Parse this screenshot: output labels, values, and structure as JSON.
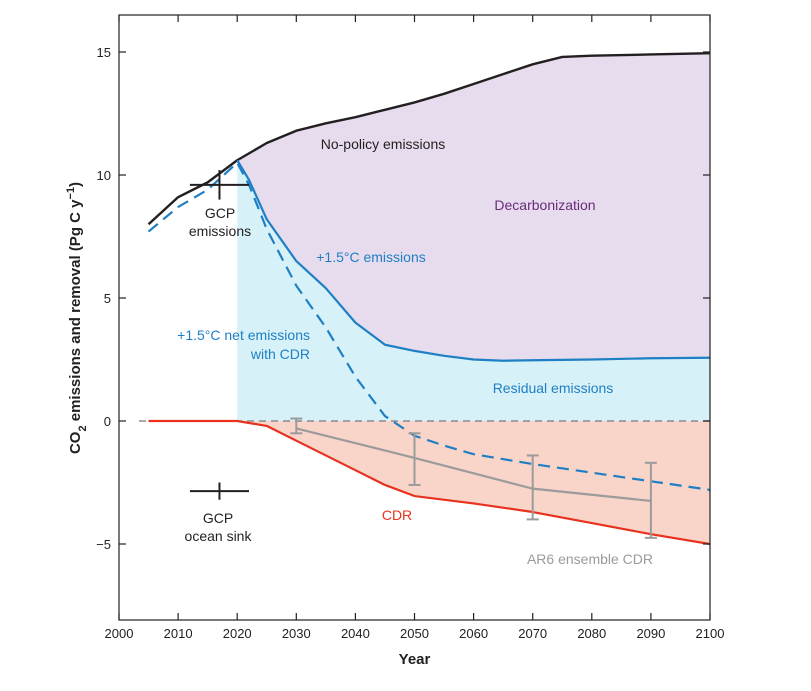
{
  "chart_data": {
    "type": "line",
    "xlabel": "Year",
    "ylabel_main": "CO",
    "ylabel_sub": "2",
    "ylabel_rest": " emissions and removal (Pg C y",
    "ylabel_sup": "−1",
    "ylabel_end": ")",
    "xlim": [
      2000,
      2100
    ],
    "ylim": [
      -8,
      16
    ],
    "x_ticks": [
      2000,
      2010,
      2020,
      2030,
      2040,
      2050,
      2060,
      2070,
      2080,
      2090,
      2100
    ],
    "y_ticks": [
      -5,
      0,
      5,
      10,
      15
    ],
    "y_tick_labels": [
      "−5",
      "0",
      "5",
      "10",
      "15"
    ],
    "colors": {
      "no_policy": "#231f20",
      "emissions_15": "#1f7fc4",
      "cdr": "#e8321e",
      "ar6": "#9b9b9b",
      "decarbonization_fill": "#e6dcee",
      "residual_fill": "#d7f1f8",
      "cdr_fill": "#f9d4c8",
      "decarbonization_text": "#6b2a7a",
      "zero_line": "#8c8c8c"
    },
    "series": [
      {
        "name": "No-policy emissions",
        "key": "no_policy",
        "style": "solid",
        "x": [
          2005,
          2010,
          2015,
          2020,
          2025,
          2030,
          2035,
          2040,
          2045,
          2050,
          2055,
          2060,
          2065,
          2070,
          2075,
          2080,
          2090,
          2100
        ],
        "y": [
          8.0,
          9.1,
          9.7,
          10.6,
          11.3,
          11.8,
          12.1,
          12.35,
          12.65,
          12.95,
          13.3,
          13.7,
          14.1,
          14.5,
          14.8,
          14.85,
          14.9,
          14.95
        ]
      },
      {
        "name": "+1.5°C emissions",
        "key": "emissions_15",
        "style": "solid",
        "x": [
          2020,
          2022,
          2025,
          2030,
          2035,
          2040,
          2045,
          2050,
          2055,
          2060,
          2065,
          2070,
          2080,
          2090,
          2100
        ],
        "y": [
          10.6,
          9.8,
          8.2,
          6.5,
          5.4,
          4.0,
          3.1,
          2.85,
          2.65,
          2.5,
          2.45,
          2.47,
          2.5,
          2.55,
          2.57
        ]
      },
      {
        "name": "+1.5°C net emissions with CDR",
        "key": "net_cdr",
        "style": "dashed",
        "x": [
          2005,
          2010,
          2015,
          2020,
          2022,
          2025,
          2030,
          2035,
          2040,
          2045,
          2050,
          2055,
          2060,
          2070,
          2080,
          2090,
          2100
        ],
        "y": [
          7.7,
          8.7,
          9.4,
          10.5,
          9.6,
          7.8,
          5.5,
          3.8,
          1.8,
          0.2,
          -0.6,
          -1.0,
          -1.35,
          -1.75,
          -2.1,
          -2.45,
          -2.8
        ]
      },
      {
        "name": "CDR",
        "key": "cdr",
        "style": "solid",
        "x": [
          2005,
          2010,
          2020,
          2025,
          2030,
          2035,
          2040,
          2045,
          2050,
          2060,
          2070,
          2080,
          2090,
          2100
        ],
        "y": [
          0,
          0,
          0,
          -0.2,
          -0.8,
          -1.4,
          -2.0,
          -2.6,
          -3.05,
          -3.35,
          -3.7,
          -4.15,
          -4.6,
          -5.0
        ]
      },
      {
        "name": "AR6 ensemble CDR",
        "key": "ar6",
        "style": "solid",
        "x": [
          2030,
          2050,
          2070,
          2090
        ],
        "y": [
          -0.3,
          -1.5,
          -2.75,
          -3.25
        ],
        "err_low": [
          -0.5,
          -2.6,
          -4.0,
          -4.75
        ],
        "err_high": [
          0.1,
          -0.5,
          -1.4,
          -1.7
        ]
      }
    ],
    "gcp_emissions": {
      "x": 2017,
      "y": 9.6,
      "x_from": 2012,
      "x_to": 2022,
      "y_from": 9.0,
      "y_to": 10.2
    },
    "gcp_ocean_sink": {
      "x": 2017,
      "y": -2.85,
      "x_from": 2012,
      "x_to": 2022,
      "y_from": -3.2,
      "y_to": -2.5
    },
    "annotations": {
      "no_policy": "No-policy emissions",
      "decarbonization": "Decarbonization",
      "gcp_emissions_1": "GCP",
      "gcp_emissions_2": "emissions",
      "emissions_15": "+1.5°C emissions",
      "net_cdr_1": "+1.5°C net emissions",
      "net_cdr_2": "with CDR",
      "residual": "Residual emissions",
      "cdr": "CDR",
      "gcp_ocean_1": "GCP",
      "gcp_ocean_2": "ocean sink",
      "ar6": "AR6 ensemble CDR"
    }
  }
}
